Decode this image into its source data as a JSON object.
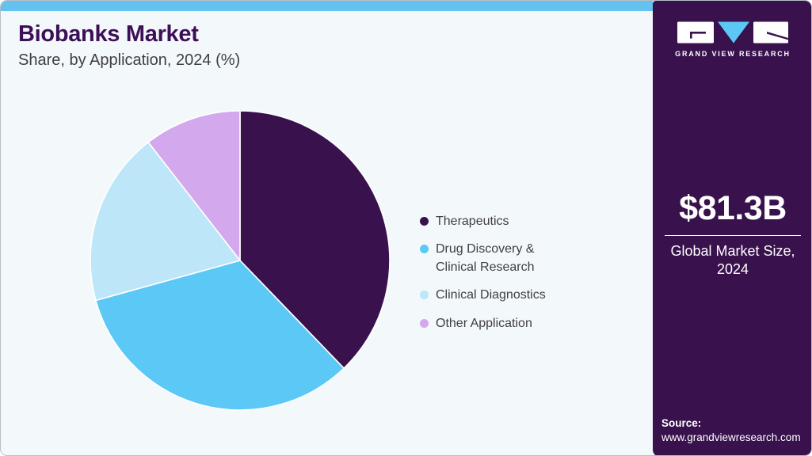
{
  "header": {
    "title": "Biobanks Market",
    "subtitle": "Share, by Application, 2024 (%)"
  },
  "chart_data": {
    "type": "pie",
    "title": "Biobanks Market Share, by Application, 2024 (%)",
    "categories": [
      "Therapeutics",
      "Drug Discovery & Clinical Research",
      "Clinical Diagnostics",
      "Other Application"
    ],
    "values": [
      37.8,
      32.9,
      18.8,
      10.5
    ],
    "unit": "%",
    "colors": [
      "#38114d",
      "#5cc8f6",
      "#bde6f8",
      "#d3a8ed"
    ],
    "start_angle_deg": 0,
    "direction": "clockwise",
    "legend_position": "right",
    "data_labels": false
  },
  "sidebar": {
    "logo_text": "GRAND VIEW RESEARCH",
    "market_size_value": "$81.3B",
    "market_size_label": "Global Market Size, 2024",
    "source_label": "Source:",
    "source_url": "www.grandviewresearch.com"
  },
  "theme": {
    "top_bar": "#63c3ee",
    "card_bg": "#f3f8fb",
    "border": "#b7bec5",
    "title_color": "#3c0f57",
    "text_color": "#3f3e44",
    "sidebar_bg": "#38114d",
    "accent": "#5cc8f6"
  }
}
